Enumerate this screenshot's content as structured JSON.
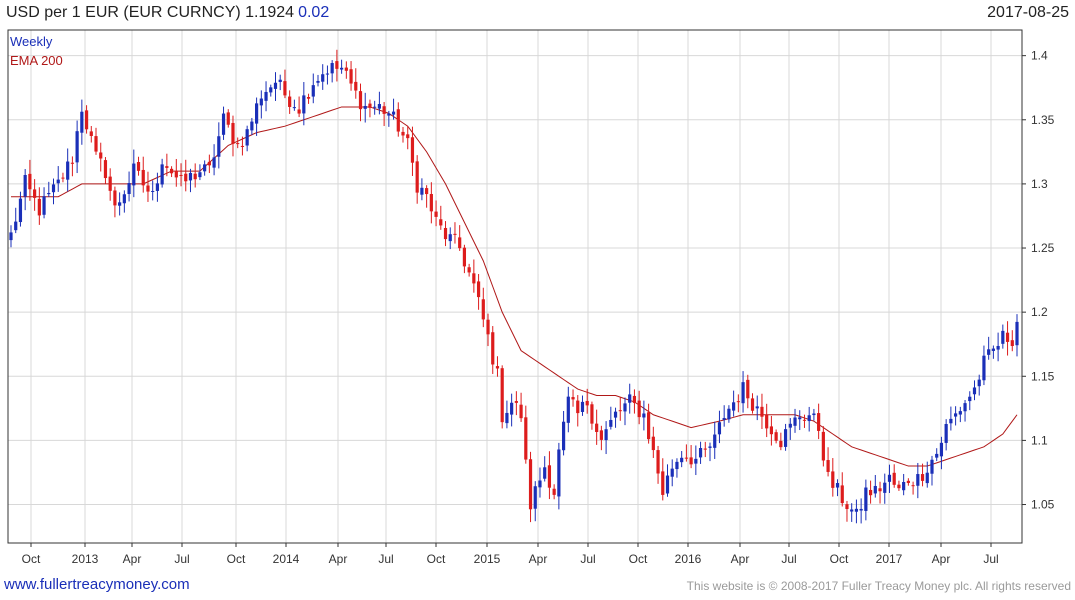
{
  "header": {
    "title": "USD per 1 EUR (EUR CURNCY) 1.1924",
    "change": "0.02",
    "date": "2017-08-25"
  },
  "legend": {
    "weekly": "Weekly",
    "ema": "EMA 200"
  },
  "footer": {
    "left": "www.fullertreacymoney.com",
    "right": "This website is © 2008-2017 Fuller Treacy Money plc. All rights reserved"
  },
  "colors": {
    "up": "#1a2fb8",
    "down": "#dd1c1c",
    "ema": "#b01818",
    "grid": "#d8d8d8",
    "border": "#333333"
  },
  "chart_data": {
    "type": "candlestick",
    "title": "USD per 1 EUR (EUR CURNCY) 1.1924",
    "series": [
      {
        "name": "Weekly"
      },
      {
        "name": "EMA 200"
      }
    ],
    "ylim": [
      1.02,
      1.42
    ],
    "y_ticks": [
      1.05,
      1.1,
      1.15,
      1.2,
      1.25,
      1.3,
      1.35,
      1.4
    ],
    "x_ticks": [
      "Oct",
      "2013",
      "Apr",
      "Jul",
      "Oct",
      "2014",
      "Apr",
      "Jul",
      "Oct",
      "2015",
      "Apr",
      "Jul",
      "Oct",
      "2016",
      "Apr",
      "Jul",
      "Oct",
      "2017",
      "Apr",
      "Jul"
    ],
    "weekly_close_anchors": [
      [
        0,
        1.26
      ],
      [
        3,
        1.3
      ],
      [
        6,
        1.28
      ],
      [
        10,
        1.3
      ],
      [
        13,
        1.32
      ],
      [
        15,
        1.36
      ],
      [
        18,
        1.32
      ],
      [
        20,
        1.31
      ],
      [
        22,
        1.28
      ],
      [
        26,
        1.31
      ],
      [
        30,
        1.29
      ],
      [
        32,
        1.32
      ],
      [
        36,
        1.3
      ],
      [
        40,
        1.31
      ],
      [
        42,
        1.31
      ],
      [
        45,
        1.35
      ],
      [
        48,
        1.33
      ],
      [
        50,
        1.34
      ],
      [
        53,
        1.37
      ],
      [
        56,
        1.38
      ],
      [
        58,
        1.37
      ],
      [
        61,
        1.36
      ],
      [
        64,
        1.38
      ],
      [
        67,
        1.39
      ],
      [
        70,
        1.39
      ],
      [
        73,
        1.37
      ],
      [
        75,
        1.36
      ],
      [
        78,
        1.36
      ],
      [
        80,
        1.355
      ],
      [
        82,
        1.345
      ],
      [
        84,
        1.33
      ],
      [
        86,
        1.3
      ],
      [
        88,
        1.29
      ],
      [
        90,
        1.27
      ],
      [
        92,
        1.26
      ],
      [
        95,
        1.25
      ],
      [
        98,
        1.22
      ],
      [
        101,
        1.18
      ],
      [
        103,
        1.15
      ],
      [
        104,
        1.12
      ],
      [
        106,
        1.13
      ],
      [
        108,
        1.12
      ],
      [
        109,
        1.08
      ],
      [
        110,
        1.05
      ],
      [
        111,
        1.06
      ],
      [
        113,
        1.08
      ],
      [
        115,
        1.06
      ],
      [
        116,
        1.09
      ],
      [
        118,
        1.13
      ],
      [
        120,
        1.12
      ],
      [
        122,
        1.13
      ],
      [
        125,
        1.1
      ],
      [
        128,
        1.12
      ],
      [
        131,
        1.13
      ],
      [
        134,
        1.12
      ],
      [
        136,
        1.09
      ],
      [
        138,
        1.06
      ],
      [
        140,
        1.08
      ],
      [
        142,
        1.09
      ],
      [
        145,
        1.085
      ],
      [
        147,
        1.09
      ],
      [
        149,
        1.1
      ],
      [
        151,
        1.12
      ],
      [
        153,
        1.13
      ],
      [
        155,
        1.14
      ],
      [
        157,
        1.13
      ],
      [
        159,
        1.12
      ],
      [
        161,
        1.11
      ],
      [
        163,
        1.1
      ],
      [
        165,
        1.11
      ],
      [
        167,
        1.12
      ],
      [
        169,
        1.12
      ],
      [
        171,
        1.11
      ],
      [
        173,
        1.07
      ],
      [
        175,
        1.06
      ],
      [
        177,
        1.05
      ],
      [
        179,
        1.04
      ],
      [
        181,
        1.06
      ],
      [
        183,
        1.06
      ],
      [
        186,
        1.07
      ],
      [
        188,
        1.06
      ],
      [
        190,
        1.07
      ],
      [
        192,
        1.07
      ],
      [
        194,
        1.08
      ],
      [
        196,
        1.09
      ],
      [
        198,
        1.11
      ],
      [
        200,
        1.12
      ],
      [
        202,
        1.13
      ],
      [
        204,
        1.14
      ],
      [
        206,
        1.16
      ],
      [
        208,
        1.17
      ],
      [
        210,
        1.18
      ],
      [
        212,
        1.18
      ],
      [
        213,
        1.1924
      ]
    ],
    "ema_anchors": [
      [
        0,
        1.29
      ],
      [
        5,
        1.29
      ],
      [
        10,
        1.29
      ],
      [
        15,
        1.3
      ],
      [
        20,
        1.3
      ],
      [
        28,
        1.3
      ],
      [
        34,
        1.31
      ],
      [
        40,
        1.31
      ],
      [
        46,
        1.33
      ],
      [
        52,
        1.34
      ],
      [
        58,
        1.345
      ],
      [
        62,
        1.35
      ],
      [
        66,
        1.355
      ],
      [
        70,
        1.36
      ],
      [
        76,
        1.36
      ],
      [
        80,
        1.355
      ],
      [
        84,
        1.345
      ],
      [
        88,
        1.325
      ],
      [
        92,
        1.3
      ],
      [
        96,
        1.27
      ],
      [
        100,
        1.24
      ],
      [
        104,
        1.2
      ],
      [
        108,
        1.17
      ],
      [
        112,
        1.16
      ],
      [
        116,
        1.15
      ],
      [
        120,
        1.14
      ],
      [
        124,
        1.135
      ],
      [
        128,
        1.135
      ],
      [
        132,
        1.13
      ],
      [
        136,
        1.12
      ],
      [
        140,
        1.115
      ],
      [
        144,
        1.11
      ],
      [
        150,
        1.115
      ],
      [
        155,
        1.12
      ],
      [
        160,
        1.12
      ],
      [
        166,
        1.12
      ],
      [
        170,
        1.115
      ],
      [
        174,
        1.105
      ],
      [
        178,
        1.095
      ],
      [
        182,
        1.09
      ],
      [
        186,
        1.085
      ],
      [
        190,
        1.08
      ],
      [
        194,
        1.08
      ],
      [
        198,
        1.085
      ],
      [
        202,
        1.09
      ],
      [
        206,
        1.095
      ],
      [
        210,
        1.105
      ],
      [
        213,
        1.12
      ]
    ]
  }
}
